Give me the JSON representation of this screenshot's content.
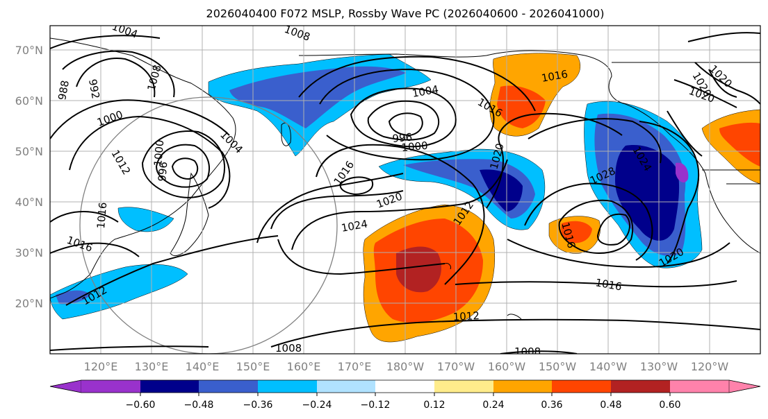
{
  "title": "2026040400 F072 MSLP, Rossby Wave PC (2026040600 - 2026041000)",
  "map": {
    "lat_labels": [
      "70°N",
      "60°N",
      "50°N",
      "40°N",
      "30°N",
      "20°N"
    ],
    "lon_labels": [
      "120°E",
      "130°E",
      "140°E",
      "150°E",
      "160°E",
      "170°E",
      "180°W",
      "170°W",
      "160°W",
      "150°W",
      "140°W",
      "130°W",
      "120°W"
    ],
    "isobar_labels": [
      "1004",
      "1008",
      "1008",
      "992",
      "988",
      "1000",
      "1004",
      "996",
      "1000",
      "1004",
      "1016",
      "1016",
      "1020",
      "1020",
      "996",
      "1012",
      "1000",
      "1016",
      "1020",
      "1024",
      "1012",
      "1016",
      "1028",
      "1024",
      "1020",
      "1016",
      "1016",
      "1012",
      "1008",
      "1008",
      "1012",
      "1016",
      "1020",
      "1020"
    ]
  },
  "colorbar": {
    "tick_labels": [
      "−0.60",
      "−0.48",
      "−0.36",
      "−0.24",
      "−0.12",
      "0.12",
      "0.24",
      "0.36",
      "0.48",
      "0.60"
    ],
    "colors": [
      "#9932cc",
      "#00008b",
      "#3a5fcd",
      "#00bfff",
      "#b0e2ff",
      "#ffffff",
      "#ffec8b",
      "#ffa500",
      "#ff4500",
      "#b22222",
      "#ff82ab"
    ]
  }
}
